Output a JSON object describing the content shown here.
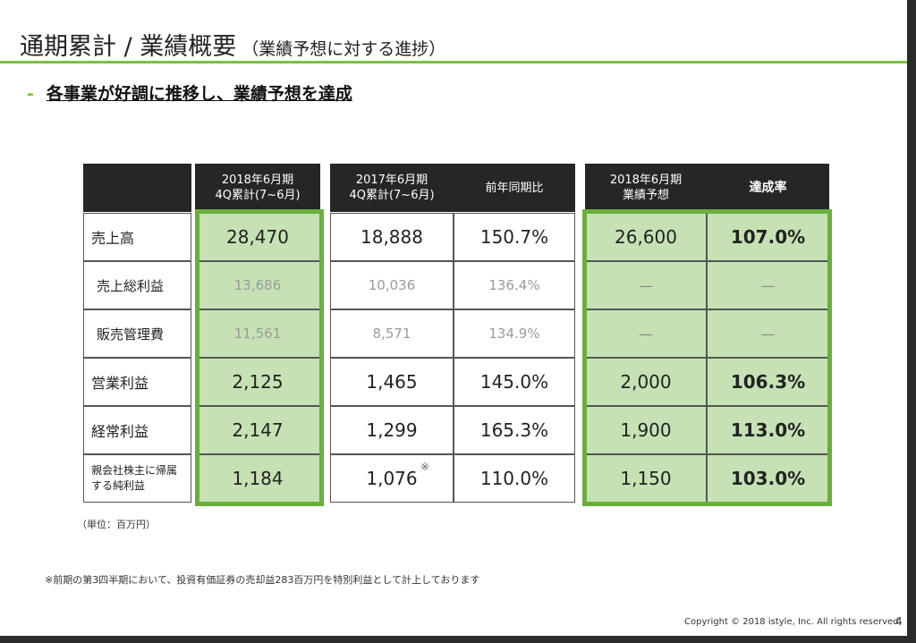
{
  "title": {
    "main": "通期累計 / 業績概要",
    "sub": "（業績予想に対する進捗）"
  },
  "headline": {
    "dash": "-",
    "text": "各事業が好調に推移し、業績予想を達成"
  },
  "table": {
    "headers": {
      "current": [
        "2018年6月期",
        "4Q累計(7~6月)"
      ],
      "previous": [
        "2017年6月期",
        "4Q累計(7~6月)"
      ],
      "yoy": "前年同期比",
      "forecast": [
        "2018年6月期",
        "業績予想"
      ],
      "achievement": "達成率"
    },
    "rows": [
      {
        "label": "売上高",
        "current": "28,470",
        "previous": "18,888",
        "yoy": "150.7%",
        "forecast": "26,600",
        "achievement": "107.0%"
      },
      {
        "label": "売上総利益",
        "current": "13,686",
        "previous": "10,036",
        "yoy": "136.4%",
        "forecast": "—",
        "achievement": "—"
      },
      {
        "label": "販売管理費",
        "current": "11,561",
        "previous": "8,571",
        "yoy": "134.9%",
        "forecast": "—",
        "achievement": "—"
      },
      {
        "label": "営業利益",
        "current": "2,125",
        "previous": "1,465",
        "yoy": "145.0%",
        "forecast": "2,000",
        "achievement": "106.3%"
      },
      {
        "label": "経常利益",
        "current": "2,147",
        "previous": "1,299",
        "yoy": "165.3%",
        "forecast": "1,900",
        "achievement": "113.0%"
      },
      {
        "label": [
          "親会社株主に帰属",
          "する純利益"
        ],
        "current": "1,184",
        "previous": "1,076",
        "previous_mark": "※",
        "yoy": "110.0%",
        "forecast": "1,150",
        "achievement": "103.0%"
      }
    ]
  },
  "unit_note": "（単位：百万円）",
  "footnote": "※前期の第3四半期において、投資有価証券の売却益283百万円を特別利益として計上しております",
  "copyright": "Copyright © 2018 istyle, Inc. All rights reserved.",
  "page_number": "4",
  "colors": {
    "accent_green": "#7ac143",
    "cell_green": "#c6e2b5",
    "header_dark": "#262626"
  }
}
